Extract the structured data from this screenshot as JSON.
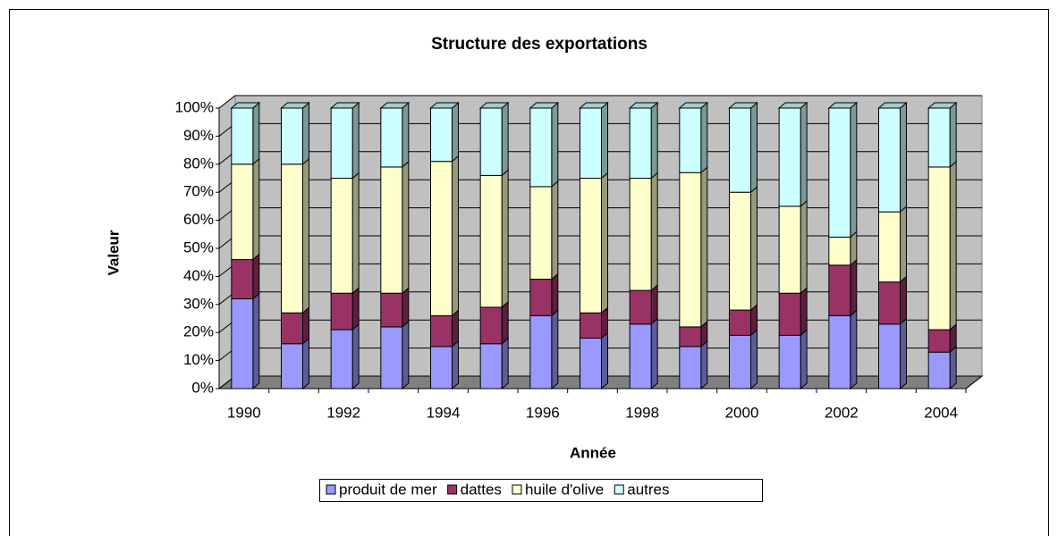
{
  "chart_data": {
    "type": "stacked-bar-3d",
    "title": "Structure des exportations",
    "x_label": "Année",
    "y_label": "Valeur",
    "categories": [
      "1990",
      null,
      "1992",
      null,
      "1994",
      null,
      "1996",
      null,
      "1998",
      null,
      "2000",
      null,
      "2002",
      null,
      "2004"
    ],
    "series": [
      {
        "name": "produit de mer",
        "color": "#9999ff",
        "values": [
          32,
          16,
          21,
          22,
          15,
          16,
          26,
          18,
          23,
          15,
          19,
          19,
          26,
          23,
          13
        ]
      },
      {
        "name": "dattes",
        "color": "#993366",
        "values": [
          14,
          11,
          13,
          12,
          11,
          13,
          13,
          9,
          12,
          7,
          9,
          15,
          18,
          15,
          8
        ]
      },
      {
        "name": "huile d'olive",
        "color": "#ffffcc",
        "values": [
          34,
          53,
          41,
          45,
          55,
          47,
          33,
          48,
          40,
          55,
          42,
          31,
          10,
          25,
          58
        ]
      },
      {
        "name": "autres",
        "color": "#ccffff",
        "values": [
          20,
          20,
          25,
          21,
          19,
          24,
          28,
          25,
          25,
          23,
          30,
          35,
          46,
          37,
          21
        ]
      }
    ],
    "ylim": [
      0,
      100
    ],
    "yticks": [
      {
        "value": 0,
        "label": "0%"
      },
      {
        "value": 10,
        "label": "10%"
      },
      {
        "value": 20,
        "label": "20%"
      },
      {
        "value": 30,
        "label": "30%"
      },
      {
        "value": 40,
        "label": "40%"
      },
      {
        "value": 50,
        "label": "50%"
      },
      {
        "value": 60,
        "label": "60%"
      },
      {
        "value": 70,
        "label": "70%"
      },
      {
        "value": 80,
        "label": "80%"
      },
      {
        "value": 90,
        "label": "90%"
      },
      {
        "value": 100,
        "label": "100%"
      }
    ],
    "grid": true
  }
}
